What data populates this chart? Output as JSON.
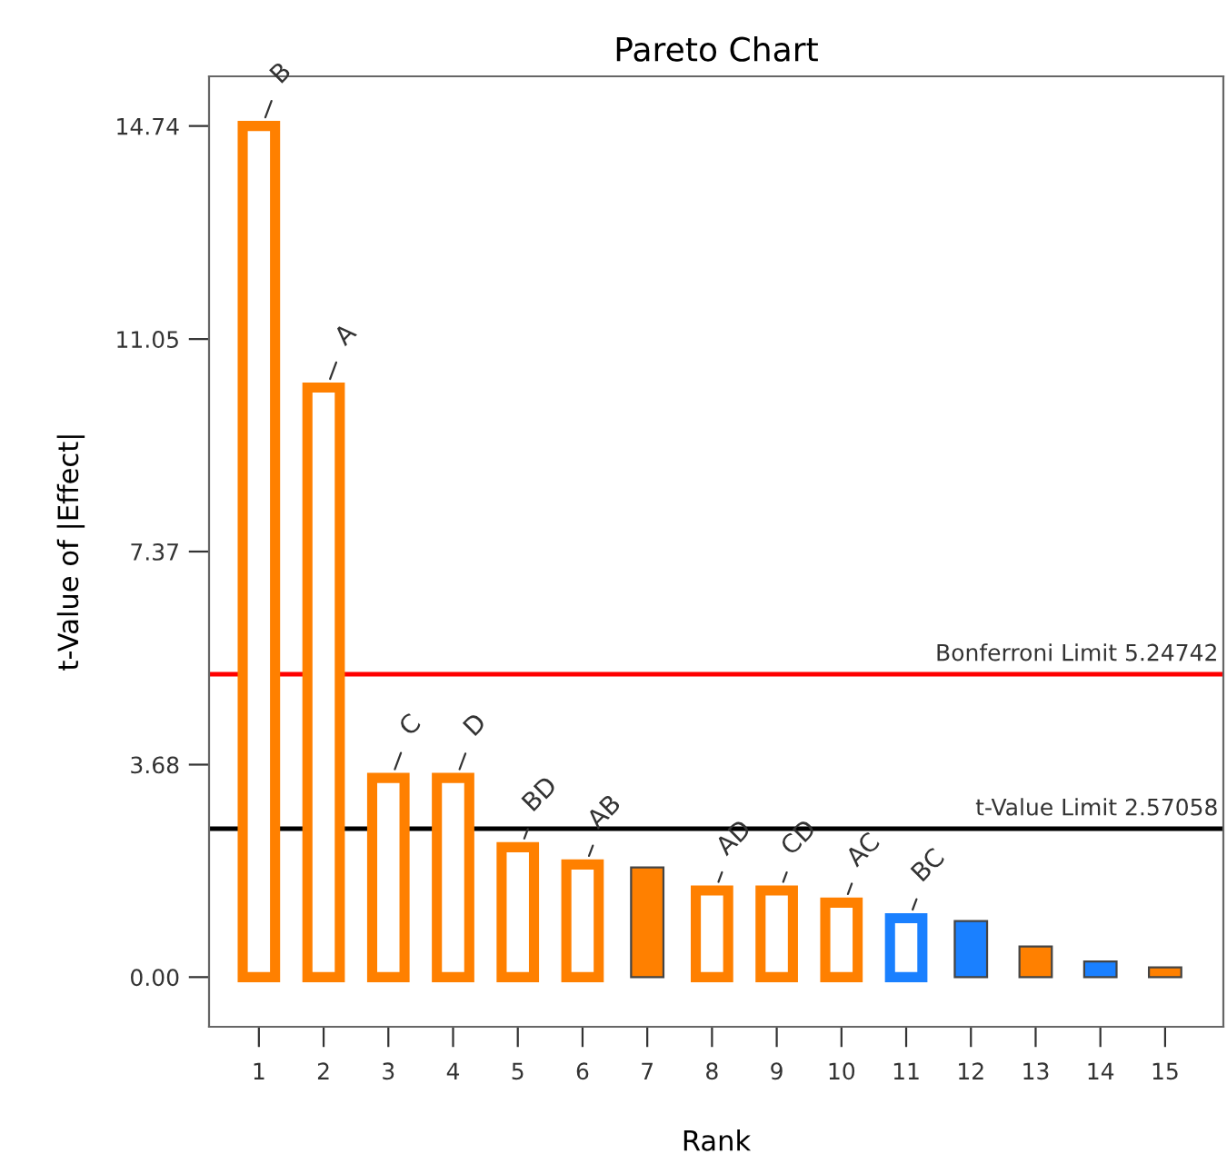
{
  "chart_data": {
    "type": "bar",
    "title": "Pareto Chart",
    "xlabel": "Rank",
    "ylabel": "t-Value of |Effect|",
    "categories": [
      "1",
      "2",
      "3",
      "4",
      "5",
      "6",
      "7",
      "8",
      "9",
      "10",
      "11",
      "12",
      "13",
      "14",
      "15"
    ],
    "values": [
      14.74,
      10.21,
      3.45,
      3.45,
      2.25,
      1.95,
      1.9,
      1.5,
      1.5,
      1.29,
      1.02,
      0.97,
      0.53,
      0.27,
      0.17
    ],
    "colors": [
      "#ff8000",
      "#ff8000",
      "#ff8000",
      "#ff8000",
      "#ff8000",
      "#ff8000",
      "#ff8000",
      "#ff8000",
      "#ff8000",
      "#ff8000",
      "#1a80ff",
      "#1a80ff",
      "#ff8000",
      "#1a80ff",
      "#ff8000"
    ],
    "value_labels": [
      "B",
      "A",
      "C",
      "D",
      "BD",
      "AB",
      null,
      "AD",
      "CD",
      "AC",
      "BC",
      null,
      null,
      null,
      null
    ],
    "ylim": [
      -0.86,
      15.6
    ],
    "yticks": [
      {
        "value": 0,
        "label": "0.00"
      },
      3.68,
      7.37,
      11.05,
      14.74
    ],
    "ref_lines": [
      {
        "axis": "y",
        "value": 5.24742,
        "label": "Bonferroni Limit 5.24742",
        "color": "#ff0000"
      },
      {
        "axis": "y",
        "value": 2.57058,
        "label": "t-Value Limit 2.57058",
        "color": "#000000"
      }
    ],
    "grid": false
  }
}
